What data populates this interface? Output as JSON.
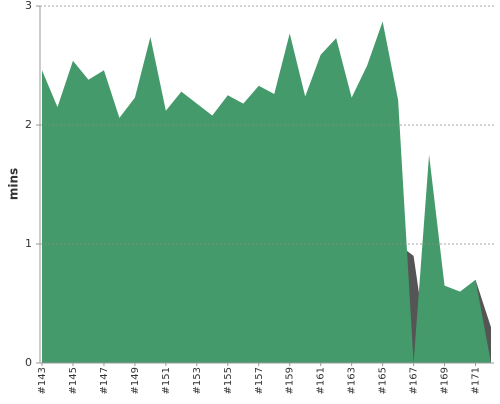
{
  "chart_data": {
    "type": "area",
    "y_label": "mins",
    "categories": [
      "#143",
      null,
      "#145",
      null,
      "#147",
      null,
      "#149",
      null,
      "#151",
      null,
      "#153",
      null,
      "#155",
      null,
      "#157",
      null,
      "#159",
      null,
      "#161",
      null,
      "#163",
      null,
      "#165",
      null,
      "#167",
      null,
      "#169",
      null,
      "#171",
      null
    ],
    "series": [
      {
        "color": "#555555",
        "values": [
          0,
          0,
          0,
          0,
          0,
          0,
          0,
          0,
          0,
          0,
          0,
          0,
          0,
          0,
          0,
          0,
          0,
          0,
          0,
          0,
          0,
          0,
          0,
          1.0,
          0.9,
          0,
          0,
          0,
          0.7,
          0.3
        ]
      },
      {
        "color": "#459a6b",
        "values": [
          2.46,
          2.15,
          2.54,
          2.38,
          2.46,
          2.06,
          2.23,
          2.74,
          2.12,
          2.28,
          2.18,
          2.08,
          2.25,
          2.18,
          2.33,
          2.26,
          2.77,
          2.24,
          2.59,
          2.73,
          2.23,
          2.5,
          2.87,
          2.21,
          0,
          1.75,
          0.65,
          0.6,
          0.7,
          0
        ]
      }
    ],
    "ylim": [
      0,
      3
    ],
    "yticks": [
      0,
      1,
      2,
      3
    ],
    "grid": true
  }
}
